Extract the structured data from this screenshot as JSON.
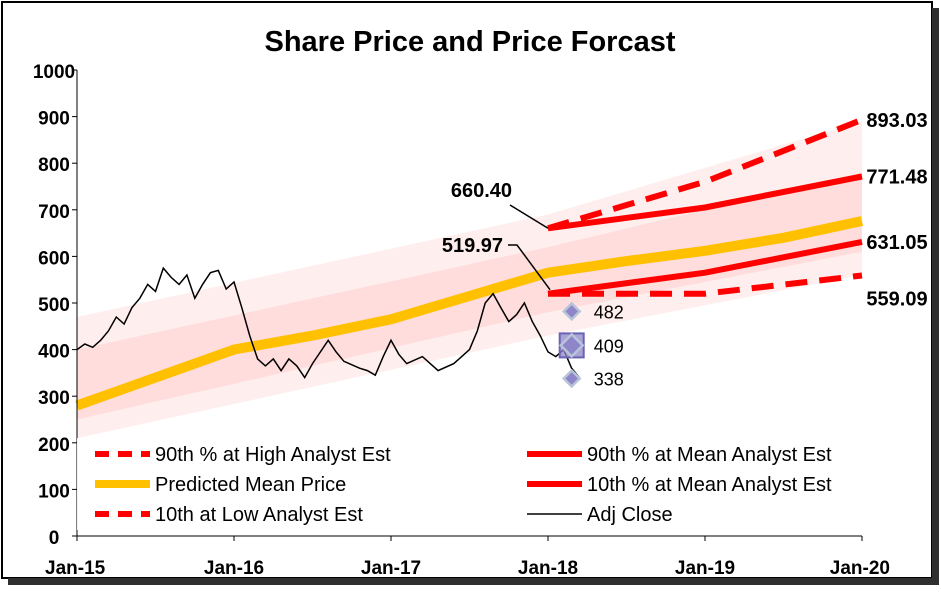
{
  "chart_data": {
    "type": "line",
    "title": "Share Price and Price Forcast",
    "xlabel": "",
    "ylabel": "",
    "ylim": [
      0,
      1000
    ],
    "y_ticks": [
      "0",
      "100",
      "200",
      "300",
      "400",
      "500",
      "600",
      "700",
      "800",
      "900",
      "1000"
    ],
    "x_ticks": [
      {
        "label": "Jan-15",
        "year": 2015.0
      },
      {
        "label": "Jan-16",
        "year": 2016.0
      },
      {
        "label": "Jan-17",
        "year": 2017.0
      },
      {
        "label": "Jan-18",
        "year": 2018.0
      },
      {
        "label": "Jan-19",
        "year": 2019.0
      },
      {
        "label": "Jan-20",
        "year": 2020.0
      }
    ],
    "xlim": [
      2015.0,
      2020.0
    ],
    "grid": false,
    "legend_position": "bottom",
    "colors": {
      "high": "#ff0000",
      "mean_band": "#ff0000",
      "predicted": "#ffc000",
      "adj_close": "#000000",
      "marker_fill": "#8e86c8",
      "band": "#ffb3b3"
    },
    "series": [
      {
        "name": "90th % at High Analyst Est",
        "style": "dashed",
        "color": "#ff0000",
        "points": [
          [
            2018.0,
            660.4
          ],
          [
            2019.0,
            760.0
          ],
          [
            2020.0,
            893.03
          ]
        ]
      },
      {
        "name": "90th % at Mean Analyst Est",
        "style": "solid",
        "color": "#ff0000",
        "points": [
          [
            2018.0,
            660.4
          ],
          [
            2019.0,
            705.0
          ],
          [
            2020.0,
            771.48
          ]
        ]
      },
      {
        "name": "Predicted Mean Price",
        "style": "solid-thick",
        "color": "#ffc000",
        "points": [
          [
            2015.0,
            280
          ],
          [
            2015.5,
            340
          ],
          [
            2016.0,
            400
          ],
          [
            2016.5,
            430
          ],
          [
            2017.0,
            465
          ],
          [
            2017.5,
            515
          ],
          [
            2018.0,
            565
          ],
          [
            2018.5,
            590
          ],
          [
            2019.0,
            612
          ],
          [
            2019.5,
            640
          ],
          [
            2020.0,
            676
          ]
        ]
      },
      {
        "name": "10th % at Mean Analyst Est",
        "style": "solid",
        "color": "#ff0000",
        "points": [
          [
            2018.0,
            519.97
          ],
          [
            2019.0,
            565.0
          ],
          [
            2020.0,
            631.05
          ]
        ]
      },
      {
        "name": "10th at Low Analyst Est",
        "style": "dashed",
        "color": "#ff0000",
        "points": [
          [
            2018.0,
            519.97
          ],
          [
            2019.0,
            520.0
          ],
          [
            2020.0,
            559.09
          ]
        ]
      },
      {
        "name": "Adj Close",
        "style": "thin",
        "color": "#000000",
        "points": [
          [
            2015.0,
            400
          ],
          [
            2015.05,
            412
          ],
          [
            2015.1,
            405
          ],
          [
            2015.15,
            420
          ],
          [
            2015.2,
            440
          ],
          [
            2015.25,
            470
          ],
          [
            2015.3,
            455
          ],
          [
            2015.35,
            490
          ],
          [
            2015.4,
            510
          ],
          [
            2015.45,
            540
          ],
          [
            2015.5,
            525
          ],
          [
            2015.55,
            575
          ],
          [
            2015.6,
            555
          ],
          [
            2015.65,
            540
          ],
          [
            2015.7,
            560
          ],
          [
            2015.75,
            510
          ],
          [
            2015.8,
            540
          ],
          [
            2015.85,
            565
          ],
          [
            2015.9,
            570
          ],
          [
            2015.95,
            530
          ],
          [
            2016.0,
            545
          ],
          [
            2016.05,
            490
          ],
          [
            2016.1,
            430
          ],
          [
            2016.15,
            380
          ],
          [
            2016.2,
            365
          ],
          [
            2016.25,
            380
          ],
          [
            2016.3,
            355
          ],
          [
            2016.35,
            380
          ],
          [
            2016.4,
            365
          ],
          [
            2016.45,
            340
          ],
          [
            2016.5,
            370
          ],
          [
            2016.6,
            420
          ],
          [
            2016.65,
            395
          ],
          [
            2016.7,
            375
          ],
          [
            2016.8,
            360
          ],
          [
            2016.85,
            355
          ],
          [
            2016.9,
            345
          ],
          [
            2016.95,
            385
          ],
          [
            2017.0,
            420
          ],
          [
            2017.05,
            390
          ],
          [
            2017.1,
            370
          ],
          [
            2017.2,
            385
          ],
          [
            2017.3,
            355
          ],
          [
            2017.4,
            370
          ],
          [
            2017.45,
            385
          ],
          [
            2017.5,
            400
          ],
          [
            2017.55,
            440
          ],
          [
            2017.6,
            500
          ],
          [
            2017.65,
            520
          ],
          [
            2017.7,
            490
          ],
          [
            2017.75,
            460
          ],
          [
            2017.8,
            475
          ],
          [
            2017.85,
            500
          ],
          [
            2017.9,
            460
          ],
          [
            2017.95,
            430
          ],
          [
            2018.0,
            395
          ],
          [
            2018.05,
            385
          ],
          [
            2018.1,
            400
          ],
          [
            2018.15,
            360
          ],
          [
            2018.2,
            340
          ]
        ]
      }
    ],
    "bands": [
      {
        "name": "outer",
        "upper": [
          [
            2015.0,
            470
          ],
          [
            2018.0,
            690
          ],
          [
            2020.0,
            890
          ]
        ],
        "lower": [
          [
            2015.0,
            210
          ],
          [
            2018.0,
            430
          ],
          [
            2020.0,
            560
          ]
        ]
      },
      {
        "name": "inner",
        "upper": [
          [
            2015.0,
            400
          ],
          [
            2018.0,
            620
          ],
          [
            2020.0,
            780
          ]
        ],
        "lower": [
          [
            2015.0,
            250
          ],
          [
            2018.0,
            480
          ],
          [
            2020.0,
            610
          ]
        ]
      }
    ],
    "analyst_markers": [
      {
        "label": "482",
        "x": 2018.1,
        "value": 482,
        "size": "small"
      },
      {
        "label": "409",
        "x": 2018.1,
        "value": 409,
        "size": "large"
      },
      {
        "label": "338",
        "x": 2018.1,
        "value": 338,
        "size": "small"
      }
    ],
    "annotations": [
      {
        "label": "660.40",
        "x": 2018.0,
        "value": 660.4,
        "kind": "start-high"
      },
      {
        "label": "519.97",
        "x": 2018.0,
        "value": 519.97,
        "kind": "start-low"
      },
      {
        "label": "893.03",
        "x": 2020.0,
        "value": 893.03,
        "kind": "end"
      },
      {
        "label": "771.48",
        "x": 2020.0,
        "value": 771.48,
        "kind": "end"
      },
      {
        "label": "631.05",
        "x": 2020.0,
        "value": 631.05,
        "kind": "end"
      },
      {
        "label": "559.09",
        "x": 2020.0,
        "value": 559.09,
        "kind": "end"
      }
    ],
    "legend": [
      {
        "label": "90th % at High Analyst Est",
        "style": "dashed",
        "color": "#ff0000"
      },
      {
        "label": "90th % at Mean Analyst Est",
        "style": "solid",
        "color": "#ff0000"
      },
      {
        "label": "Predicted Mean Price",
        "style": "solid-thick",
        "color": "#ffc000"
      },
      {
        "label": "10th % at Mean Analyst Est",
        "style": "solid",
        "color": "#ff0000"
      },
      {
        "label": "10th at Low Analyst Est",
        "style": "dashed",
        "color": "#ff0000"
      },
      {
        "label": "Adj Close",
        "style": "thin",
        "color": "#000000"
      }
    ]
  }
}
